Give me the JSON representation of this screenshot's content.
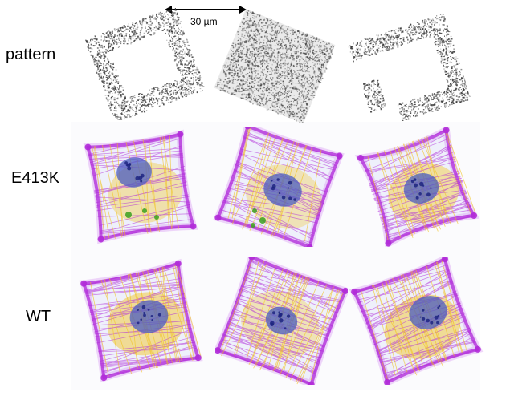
{
  "rows": {
    "pattern_label": "pattern",
    "mutant_label": "E413K",
    "wildtype_label": "WT"
  },
  "scalebar": {
    "text": "30 µm"
  },
  "colors": {
    "pattern_dots": "#3a3a3a",
    "actin": "#b02ad8",
    "actin_light": "#d58cf0",
    "nucleus": "#4b5cc0",
    "nucleus_dark": "#1d2480",
    "cytoplasm_yellow": "#f2c21a",
    "green_spots": "#3aa01e"
  },
  "panels": {
    "pattern_shapes": [
      "square-frame",
      "filled-square",
      "u-shape"
    ],
    "cell_icons": [
      "cell-1",
      "cell-2",
      "cell-3"
    ]
  }
}
